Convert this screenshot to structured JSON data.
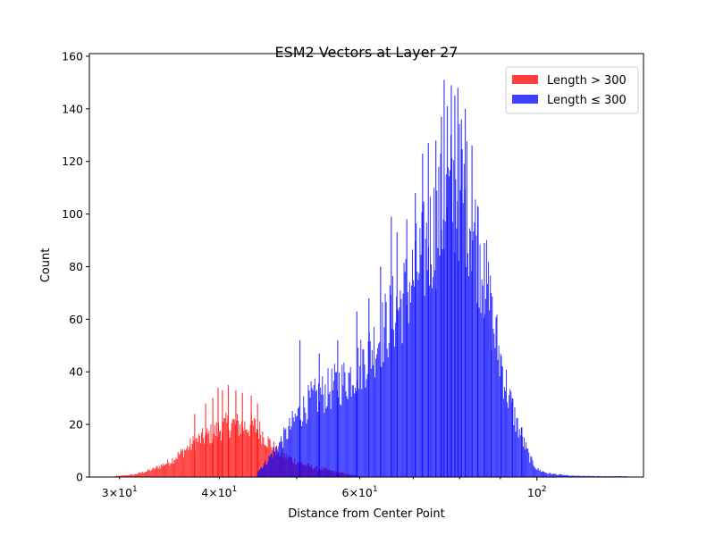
{
  "chart_data": {
    "type": "histogram",
    "title": "ESM2 Vectors at Layer 27",
    "xlabel": "Distance from Center Point",
    "ylabel": "Count",
    "xscale": "log",
    "xlim": [
      27.5,
      136
    ],
    "ylim": [
      0,
      161
    ],
    "yticks": [
      0,
      20,
      40,
      60,
      80,
      100,
      120,
      140,
      160
    ],
    "xticks_major": [
      {
        "value": 100,
        "label": "10",
        "exp": "2"
      }
    ],
    "xticks_minor": [
      {
        "value": 30,
        "label": "3×10",
        "exp": "1"
      },
      {
        "value": 40,
        "label": "4×10",
        "exp": "1"
      },
      {
        "value": 60,
        "label": "6×10",
        "exp": "1"
      }
    ],
    "legend": {
      "placement": "top-right"
    },
    "series": [
      {
        "name": "Length > 300",
        "color": "#ff0000",
        "opacity": 0.75,
        "bins": {
          "x": [
            29.5,
            31.3,
            33.0,
            34.6,
            36.0,
            37.3,
            38.5,
            39.6,
            40.6,
            41.5,
            42.4,
            43.3,
            44.1,
            45.0,
            46.0,
            47.2,
            48.5,
            50.0,
            52.0,
            54.0,
            56.0,
            58.0,
            60.0
          ],
          "y": [
            0.3,
            1,
            3,
            6,
            10,
            14,
            16,
            18,
            20,
            21,
            20,
            20,
            20,
            18,
            14,
            10,
            8,
            6,
            4,
            3,
            2,
            1,
            0.3
          ]
        },
        "spikes": [
          {
            "x": 37.2,
            "y": 24
          },
          {
            "x": 38.4,
            "y": 28
          },
          {
            "x": 39.2,
            "y": 30
          },
          {
            "x": 39.8,
            "y": 34
          },
          {
            "x": 40.3,
            "y": 33
          },
          {
            "x": 41.0,
            "y": 35
          },
          {
            "x": 41.9,
            "y": 33
          },
          {
            "x": 42.7,
            "y": 32
          },
          {
            "x": 43.8,
            "y": 31
          },
          {
            "x": 44.6,
            "y": 28
          }
        ]
      },
      {
        "name": "Length ≤ 300",
        "color": "#0000ff",
        "opacity": 0.75,
        "bins": {
          "x": [
            44.5,
            45.5,
            46.5,
            47.5,
            48.5,
            50.0,
            52.0,
            54.0,
            56.0,
            58.0,
            60.0,
            62.0,
            64.0,
            66.0,
            68.0,
            70.0,
            72.0,
            74.0,
            76.0,
            78.0,
            80.0,
            82.0,
            84.0,
            86.0,
            88.0,
            90.0,
            92.0,
            94.0,
            96.0,
            98.0,
            100.0,
            103.0,
            106.0,
            110.0,
            120.0,
            130.0
          ],
          "y": [
            2,
            5,
            9,
            13,
            17,
            24,
            30,
            33,
            36,
            39,
            44,
            50,
            57,
            64,
            70,
            78,
            87,
            96,
            104,
            110,
            112,
            106,
            92,
            78,
            60,
            45,
            32,
            22,
            14,
            7,
            3,
            1.5,
            1,
            0.5,
            0.3,
            0.3
          ]
        },
        "spikes": [
          {
            "x": 50.4,
            "y": 52
          },
          {
            "x": 53.3,
            "y": 47
          },
          {
            "x": 56.2,
            "y": 52
          },
          {
            "x": 59.4,
            "y": 63
          },
          {
            "x": 61.5,
            "y": 68
          },
          {
            "x": 63.6,
            "y": 80
          },
          {
            "x": 65.6,
            "y": 99
          },
          {
            "x": 66.7,
            "y": 93
          },
          {
            "x": 68.6,
            "y": 98
          },
          {
            "x": 70.3,
            "y": 108
          },
          {
            "x": 71.8,
            "y": 123
          },
          {
            "x": 73.0,
            "y": 127
          },
          {
            "x": 74.6,
            "y": 128
          },
          {
            "x": 75.8,
            "y": 137
          },
          {
            "x": 76.4,
            "y": 151
          },
          {
            "x": 77.1,
            "y": 141
          },
          {
            "x": 78.0,
            "y": 149
          },
          {
            "x": 78.8,
            "y": 145
          },
          {
            "x": 79.5,
            "y": 148
          },
          {
            "x": 80.3,
            "y": 136
          },
          {
            "x": 81.2,
            "y": 140
          },
          {
            "x": 82.8,
            "y": 126
          },
          {
            "x": 84.2,
            "y": 103
          },
          {
            "x": 85.8,
            "y": 89
          },
          {
            "x": 87.5,
            "y": 70
          },
          {
            "x": 90.1,
            "y": 46
          },
          {
            "x": 93.0,
            "y": 30
          },
          {
            "x": 95.6,
            "y": 19
          }
        ]
      }
    ]
  }
}
